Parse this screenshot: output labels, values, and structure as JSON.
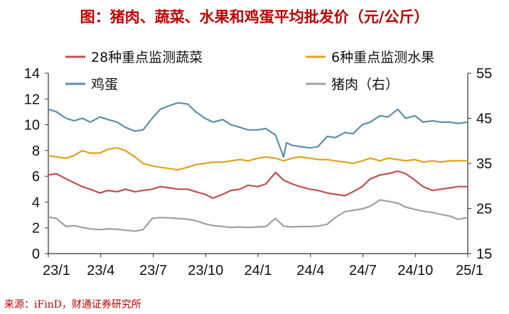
{
  "title": "图：猪肉、蔬菜、水果和鸡蛋平均批发价（元/公斤）",
  "source": "来源：iFinD，财通证券研究所",
  "colors": {
    "veg": "#c0504d",
    "fruit": "#e0a21b",
    "egg": "#5b8fab",
    "pork": "#a0a0a0",
    "title": "#c00000",
    "axis": "#333333"
  },
  "chart_data": {
    "type": "line",
    "title": "图：猪肉、蔬菜、水果和鸡蛋平均批发价（元/公斤）",
    "x_ticks": [
      "23/1",
      "23/4",
      "23/7",
      "23/10",
      "24/1",
      "24/4",
      "24/7",
      "24/10",
      "25/1"
    ],
    "x_range": [
      "2023-01-01",
      "2025-01-01"
    ],
    "y_left": {
      "range": [
        0,
        14
      ],
      "ticks": [
        "0",
        "2",
        "4",
        "6",
        "8",
        "10",
        "12",
        "14"
      ]
    },
    "y_right": {
      "range": [
        15,
        55
      ],
      "ticks": [
        "15",
        "25",
        "35",
        "45",
        "55"
      ]
    },
    "grid": false,
    "legend_position": "top",
    "series": [
      {
        "name": "28种重点监测蔬菜",
        "axis": "left",
        "color": "#c0504d",
        "points": [
          [
            "2023-01-01",
            6.1
          ],
          [
            "2023-01-15",
            6.2
          ],
          [
            "2023-02-01",
            5.8
          ],
          [
            "2023-02-15",
            5.5
          ],
          [
            "2023-03-01",
            5.2
          ],
          [
            "2023-03-15",
            5.0
          ],
          [
            "2023-04-01",
            4.7
          ],
          [
            "2023-04-15",
            4.9
          ],
          [
            "2023-05-01",
            4.8
          ],
          [
            "2023-05-15",
            5.0
          ],
          [
            "2023-06-01",
            4.8
          ],
          [
            "2023-06-15",
            4.9
          ],
          [
            "2023-07-01",
            5.0
          ],
          [
            "2023-07-15",
            5.2
          ],
          [
            "2023-08-01",
            5.1
          ],
          [
            "2023-08-15",
            5.0
          ],
          [
            "2023-09-01",
            5.0
          ],
          [
            "2023-09-15",
            4.8
          ],
          [
            "2023-10-01",
            4.6
          ],
          [
            "2023-10-15",
            4.3
          ],
          [
            "2023-11-01",
            4.6
          ],
          [
            "2023-11-15",
            4.9
          ],
          [
            "2023-12-01",
            5.0
          ],
          [
            "2023-12-15",
            5.3
          ],
          [
            "2024-01-01",
            5.2
          ],
          [
            "2024-01-15",
            5.4
          ],
          [
            "2024-02-01",
            6.3
          ],
          [
            "2024-02-15",
            5.7
          ],
          [
            "2024-03-01",
            5.4
          ],
          [
            "2024-03-15",
            5.2
          ],
          [
            "2024-04-01",
            5.0
          ],
          [
            "2024-04-15",
            4.9
          ],
          [
            "2024-05-01",
            4.7
          ],
          [
            "2024-05-15",
            4.6
          ],
          [
            "2024-06-01",
            4.5
          ],
          [
            "2024-06-15",
            4.8
          ],
          [
            "2024-07-01",
            5.2
          ],
          [
            "2024-07-15",
            5.8
          ],
          [
            "2024-08-01",
            6.1
          ],
          [
            "2024-08-15",
            6.2
          ],
          [
            "2024-09-01",
            6.4
          ],
          [
            "2024-09-15",
            6.2
          ],
          [
            "2024-10-01",
            5.7
          ],
          [
            "2024-10-15",
            5.2
          ],
          [
            "2024-11-01",
            4.9
          ],
          [
            "2024-11-15",
            5.0
          ],
          [
            "2024-12-01",
            5.1
          ],
          [
            "2024-12-15",
            5.2
          ],
          [
            "2025-01-01",
            5.2
          ]
        ]
      },
      {
        "name": "6种重点监测水果",
        "axis": "left",
        "color": "#e0a21b",
        "points": [
          [
            "2023-01-01",
            7.6
          ],
          [
            "2023-01-15",
            7.5
          ],
          [
            "2023-02-01",
            7.4
          ],
          [
            "2023-02-15",
            7.6
          ],
          [
            "2023-03-01",
            8.0
          ],
          [
            "2023-03-15",
            7.8
          ],
          [
            "2023-04-01",
            7.8
          ],
          [
            "2023-04-15",
            8.1
          ],
          [
            "2023-05-01",
            8.2
          ],
          [
            "2023-05-15",
            8.0
          ],
          [
            "2023-06-01",
            7.5
          ],
          [
            "2023-06-15",
            7.0
          ],
          [
            "2023-07-01",
            6.8
          ],
          [
            "2023-07-15",
            6.7
          ],
          [
            "2023-08-01",
            6.6
          ],
          [
            "2023-08-15",
            6.5
          ],
          [
            "2023-09-01",
            6.7
          ],
          [
            "2023-09-15",
            6.9
          ],
          [
            "2023-10-01",
            7.0
          ],
          [
            "2023-10-15",
            7.1
          ],
          [
            "2023-11-01",
            7.1
          ],
          [
            "2023-11-15",
            7.2
          ],
          [
            "2023-12-01",
            7.3
          ],
          [
            "2023-12-15",
            7.2
          ],
          [
            "2024-01-01",
            7.4
          ],
          [
            "2024-01-15",
            7.5
          ],
          [
            "2024-02-01",
            7.4
          ],
          [
            "2024-02-15",
            7.2
          ],
          [
            "2024-03-01",
            7.4
          ],
          [
            "2024-03-15",
            7.5
          ],
          [
            "2024-04-01",
            7.4
          ],
          [
            "2024-04-15",
            7.3
          ],
          [
            "2024-05-01",
            7.3
          ],
          [
            "2024-05-15",
            7.2
          ],
          [
            "2024-06-01",
            7.1
          ],
          [
            "2024-06-15",
            7.0
          ],
          [
            "2024-07-01",
            7.2
          ],
          [
            "2024-07-15",
            7.4
          ],
          [
            "2024-08-01",
            7.2
          ],
          [
            "2024-08-15",
            7.4
          ],
          [
            "2024-09-01",
            7.3
          ],
          [
            "2024-09-15",
            7.2
          ],
          [
            "2024-10-01",
            7.3
          ],
          [
            "2024-10-15",
            7.1
          ],
          [
            "2024-11-01",
            7.2
          ],
          [
            "2024-11-15",
            7.1
          ],
          [
            "2024-12-01",
            7.2
          ],
          [
            "2024-12-15",
            7.2
          ],
          [
            "2025-01-01",
            7.2
          ]
        ]
      },
      {
        "name": "鸡蛋",
        "axis": "left",
        "color": "#5b8fab",
        "points": [
          [
            "2023-01-01",
            11.2
          ],
          [
            "2023-01-15",
            11.0
          ],
          [
            "2023-02-01",
            10.5
          ],
          [
            "2023-02-15",
            10.3
          ],
          [
            "2023-03-01",
            10.5
          ],
          [
            "2023-03-15",
            10.2
          ],
          [
            "2023-04-01",
            10.6
          ],
          [
            "2023-04-15",
            10.4
          ],
          [
            "2023-05-01",
            10.2
          ],
          [
            "2023-05-15",
            9.8
          ],
          [
            "2023-06-01",
            9.5
          ],
          [
            "2023-06-15",
            9.6
          ],
          [
            "2023-07-01",
            10.5
          ],
          [
            "2023-07-15",
            11.2
          ],
          [
            "2023-08-01",
            11.5
          ],
          [
            "2023-08-15",
            11.7
          ],
          [
            "2023-09-01",
            11.6
          ],
          [
            "2023-09-15",
            11.0
          ],
          [
            "2023-10-01",
            10.5
          ],
          [
            "2023-10-15",
            10.2
          ],
          [
            "2023-11-01",
            10.4
          ],
          [
            "2023-11-15",
            10.0
          ],
          [
            "2023-12-01",
            9.8
          ],
          [
            "2023-12-15",
            9.6
          ],
          [
            "2024-01-01",
            9.6
          ],
          [
            "2024-01-15",
            9.7
          ],
          [
            "2024-02-01",
            9.2
          ],
          [
            "2024-02-10",
            8.1
          ],
          [
            "2024-02-15",
            7.5
          ],
          [
            "2024-02-20",
            8.6
          ],
          [
            "2024-03-01",
            8.4
          ],
          [
            "2024-03-15",
            8.3
          ],
          [
            "2024-04-01",
            8.2
          ],
          [
            "2024-04-15",
            8.3
          ],
          [
            "2024-05-01",
            9.1
          ],
          [
            "2024-05-15",
            9.0
          ],
          [
            "2024-06-01",
            9.4
          ],
          [
            "2024-06-15",
            9.3
          ],
          [
            "2024-07-01",
            10.0
          ],
          [
            "2024-07-15",
            10.2
          ],
          [
            "2024-08-01",
            10.7
          ],
          [
            "2024-08-15",
            10.6
          ],
          [
            "2024-09-01",
            11.2
          ],
          [
            "2024-09-15",
            10.5
          ],
          [
            "2024-10-01",
            10.7
          ],
          [
            "2024-10-15",
            10.2
          ],
          [
            "2024-11-01",
            10.3
          ],
          [
            "2024-11-15",
            10.2
          ],
          [
            "2024-12-01",
            10.2
          ],
          [
            "2024-12-15",
            10.1
          ],
          [
            "2025-01-01",
            10.2
          ]
        ]
      },
      {
        "name": "猪肉（右）",
        "axis": "right",
        "color": "#a0a0a0",
        "points": [
          [
            "2023-01-01",
            23.1
          ],
          [
            "2023-01-15",
            22.8
          ],
          [
            "2023-02-01",
            21.0
          ],
          [
            "2023-02-15",
            21.2
          ],
          [
            "2023-03-01",
            20.8
          ],
          [
            "2023-03-15",
            20.5
          ],
          [
            "2023-04-01",
            20.3
          ],
          [
            "2023-04-15",
            20.5
          ],
          [
            "2023-05-01",
            20.4
          ],
          [
            "2023-05-15",
            20.2
          ],
          [
            "2023-06-01",
            20.0
          ],
          [
            "2023-06-15",
            20.3
          ],
          [
            "2023-07-01",
            22.8
          ],
          [
            "2023-07-15",
            23.0
          ],
          [
            "2023-08-01",
            22.9
          ],
          [
            "2023-08-15",
            22.8
          ],
          [
            "2023-09-01",
            22.6
          ],
          [
            "2023-09-15",
            22.3
          ],
          [
            "2023-10-01",
            21.6
          ],
          [
            "2023-10-15",
            21.2
          ],
          [
            "2023-11-01",
            21.0
          ],
          [
            "2023-11-15",
            20.8
          ],
          [
            "2023-12-01",
            20.9
          ],
          [
            "2023-12-15",
            20.8
          ],
          [
            "2024-01-01",
            20.9
          ],
          [
            "2024-01-15",
            21.0
          ],
          [
            "2024-02-01",
            22.8
          ],
          [
            "2024-02-15",
            21.1
          ],
          [
            "2024-03-01",
            20.9
          ],
          [
            "2024-03-15",
            21.0
          ],
          [
            "2024-04-01",
            21.0
          ],
          [
            "2024-04-15",
            21.1
          ],
          [
            "2024-05-01",
            21.5
          ],
          [
            "2024-05-15",
            23.0
          ],
          [
            "2024-06-01",
            24.3
          ],
          [
            "2024-06-15",
            24.6
          ],
          [
            "2024-07-01",
            24.9
          ],
          [
            "2024-07-15",
            25.5
          ],
          [
            "2024-08-01",
            26.9
          ],
          [
            "2024-08-15",
            26.6
          ],
          [
            "2024-09-01",
            26.2
          ],
          [
            "2024-09-15",
            25.3
          ],
          [
            "2024-10-01",
            24.8
          ],
          [
            "2024-10-15",
            24.4
          ],
          [
            "2024-11-01",
            24.1
          ],
          [
            "2024-11-15",
            23.7
          ],
          [
            "2024-12-01",
            23.3
          ],
          [
            "2024-12-15",
            22.6
          ],
          [
            "2025-01-01",
            23.0
          ]
        ]
      }
    ]
  }
}
